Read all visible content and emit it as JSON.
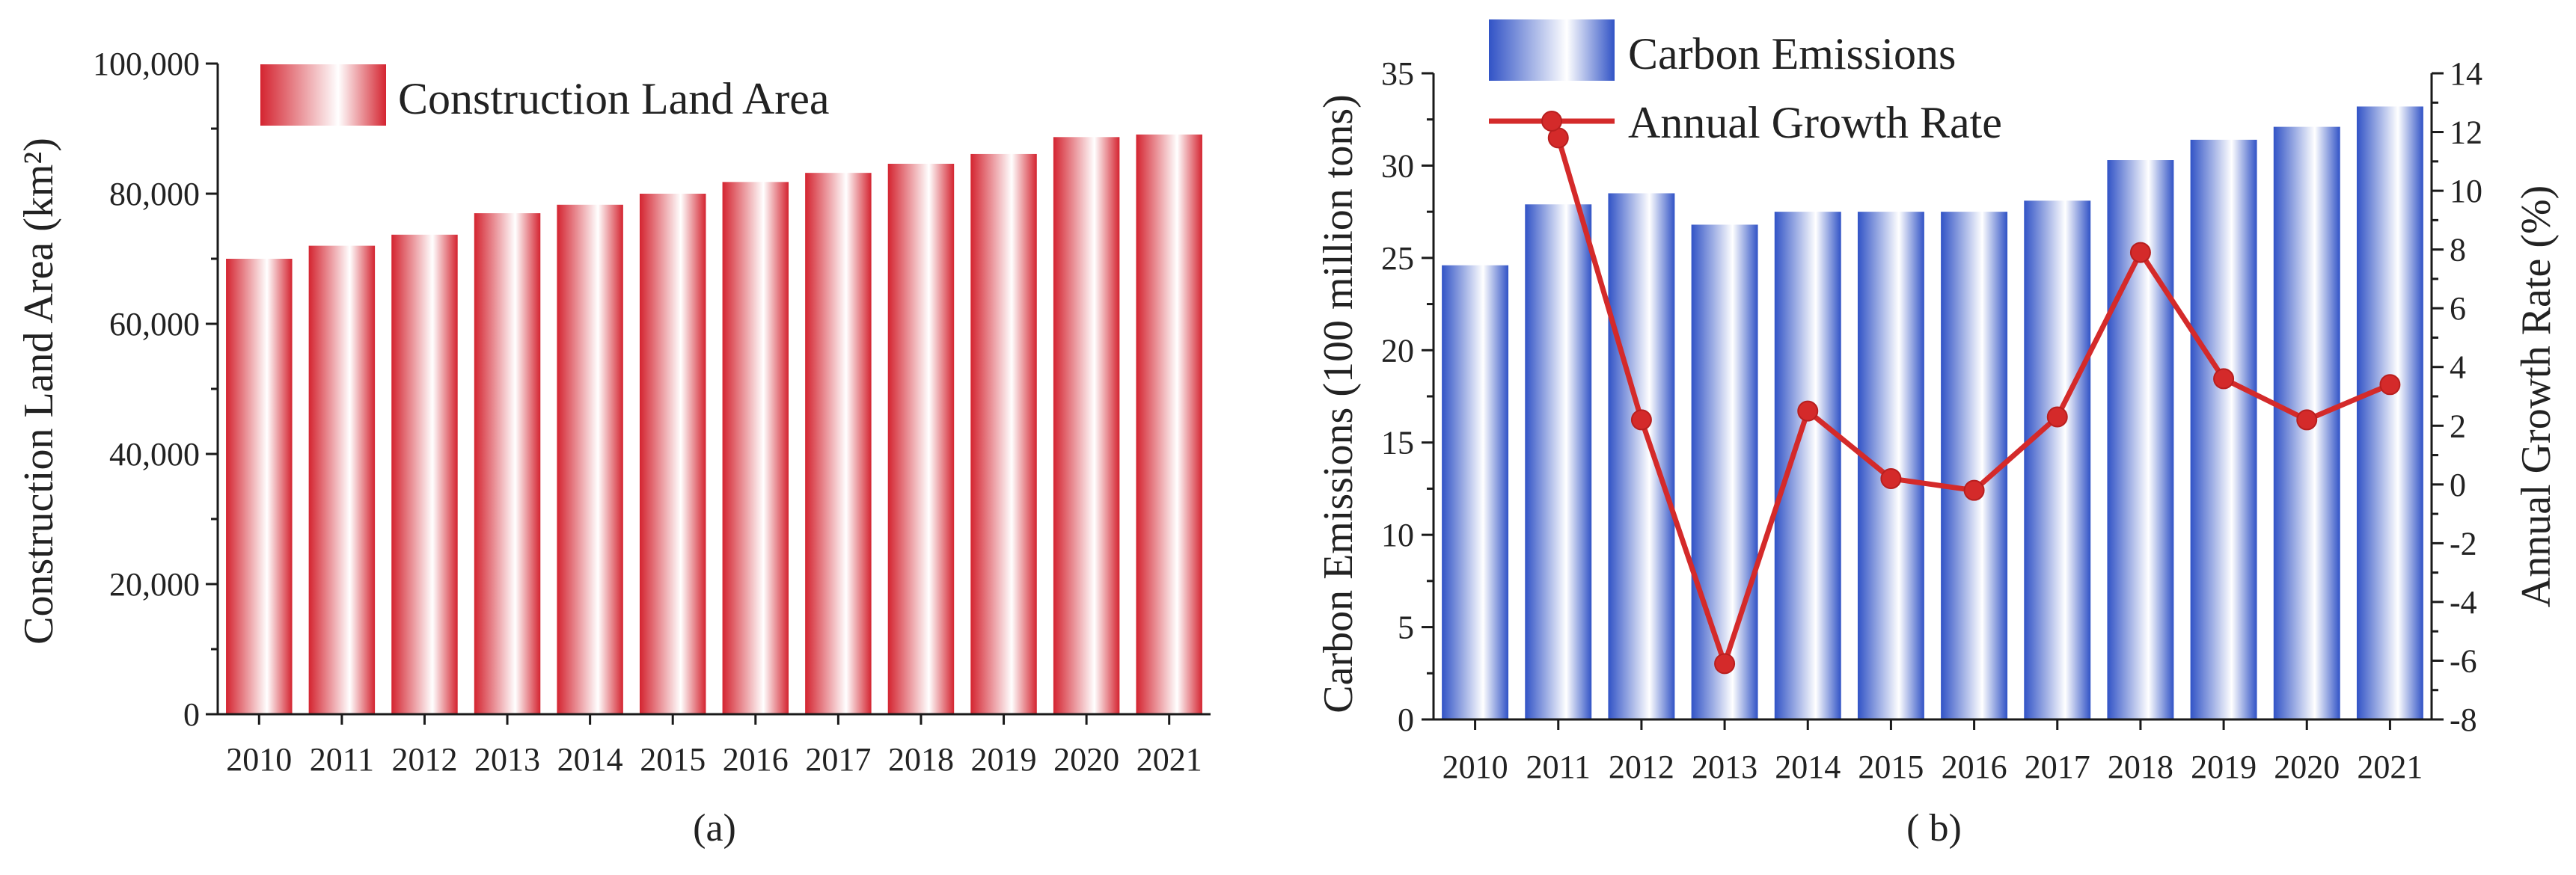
{
  "colors": {
    "red": "#d42430",
    "blue": "#3153c6",
    "line": "#d42a2a",
    "axis": "#1a1a1a",
    "white": "#ffffff"
  },
  "chart_data": [
    {
      "type": "bar",
      "panel_label": "(a)",
      "categories": [
        "2010",
        "2011",
        "2012",
        "2013",
        "2014",
        "2015",
        "2016",
        "2017",
        "2018",
        "2019",
        "2020",
        "2021"
      ],
      "series": [
        {
          "name": "Construction Land Area",
          "values": [
            70000,
            72000,
            73700,
            77000,
            78300,
            80000,
            81800,
            83200,
            84600,
            86100,
            88700,
            89100
          ]
        }
      ],
      "title": "",
      "ylabel": "Construction Land Area (km²)",
      "ylim": [
        0,
        100000
      ],
      "yticks": [
        0,
        20000,
        40000,
        60000,
        80000,
        100000
      ],
      "ytick_labels": [
        "0",
        "20,000",
        "40,000",
        "60,000",
        "80,000",
        "100,000"
      ],
      "legend": {
        "label": "Construction Land Area",
        "position": "top-left"
      }
    },
    {
      "type": "bar",
      "panel_label": "( b)",
      "categories": [
        "2010",
        "2011",
        "2012",
        "2013",
        "2014",
        "2015",
        "2016",
        "2017",
        "2018",
        "2019",
        "2020",
        "2021"
      ],
      "series": [
        {
          "name": "Carbon Emissions",
          "type": "bar",
          "axis": "left",
          "values": [
            24.6,
            27.9,
            28.5,
            26.8,
            27.5,
            27.5,
            27.5,
            28.1,
            30.3,
            31.4,
            32.1,
            33.2
          ]
        },
        {
          "name": "Annual Growth Rate",
          "type": "line",
          "axis": "right",
          "values": [
            null,
            11.8,
            2.2,
            -6.1,
            2.5,
            0.2,
            -0.2,
            2.3,
            7.9,
            3.6,
            2.2,
            3.4
          ]
        }
      ],
      "ylabel": "Carbon Emissions (100 million tons)",
      "ylim": [
        0,
        35
      ],
      "yticks": [
        0,
        5,
        10,
        15,
        20,
        25,
        30,
        35
      ],
      "y2label": "Annual Growth Rate (%)",
      "y2lim": [
        -8,
        14
      ],
      "y2ticks": [
        -8,
        -6,
        -4,
        -2,
        0,
        2,
        4,
        6,
        8,
        10,
        12,
        14
      ],
      "legend": {
        "bar_label": "Carbon Emissions",
        "line_label": "Annual Growth Rate",
        "position": "top-left"
      }
    }
  ]
}
